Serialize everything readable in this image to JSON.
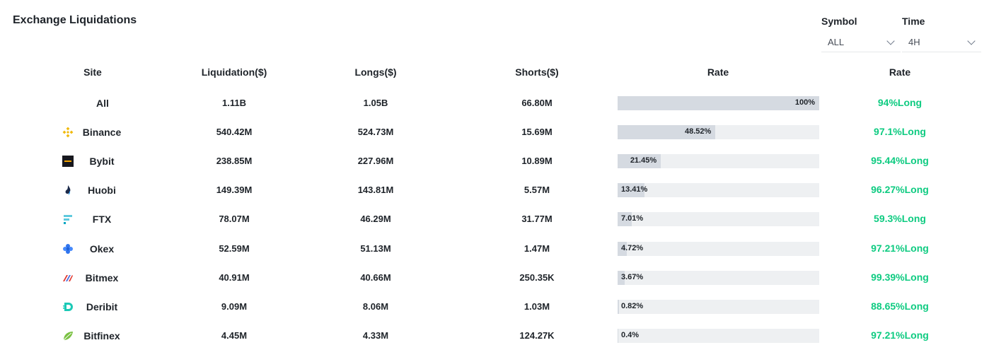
{
  "title": "Exchange Liquidations",
  "filters": {
    "symbol": {
      "label": "Symbol",
      "value": "ALL"
    },
    "time": {
      "label": "Time",
      "value": "4H"
    }
  },
  "columns": [
    "Site",
    "Liquidation($)",
    "Longs($)",
    "Shorts($)",
    "Rate",
    "Rate"
  ],
  "rows": [
    {
      "site": "All",
      "icon": "",
      "liquidation": "1.11B",
      "longs": "1.05B",
      "shorts": "66.80M",
      "rate_bar": "100%",
      "rate_pct": 100,
      "rate": "94%Long"
    },
    {
      "site": "Binance",
      "icon": "binance-icon",
      "liquidation": "540.42M",
      "longs": "524.73M",
      "shorts": "15.69M",
      "rate_bar": "48.52%",
      "rate_pct": 48.52,
      "rate": "97.1%Long"
    },
    {
      "site": "Bybit",
      "icon": "bybit-icon",
      "liquidation": "238.85M",
      "longs": "227.96M",
      "shorts": "10.89M",
      "rate_bar": "21.45%",
      "rate_pct": 21.45,
      "rate": "95.44%Long"
    },
    {
      "site": "Huobi",
      "icon": "huobi-icon",
      "liquidation": "149.39M",
      "longs": "143.81M",
      "shorts": "5.57M",
      "rate_bar": "13.41%",
      "rate_pct": 13.41,
      "rate": "96.27%Long"
    },
    {
      "site": "FTX",
      "icon": "ftx-icon",
      "liquidation": "78.07M",
      "longs": "46.29M",
      "shorts": "31.77M",
      "rate_bar": "7.01%",
      "rate_pct": 7.01,
      "rate": "59.3%Long"
    },
    {
      "site": "Okex",
      "icon": "okex-icon",
      "liquidation": "52.59M",
      "longs": "51.13M",
      "shorts": "1.47M",
      "rate_bar": "4.72%",
      "rate_pct": 4.72,
      "rate": "97.21%Long"
    },
    {
      "site": "Bitmex",
      "icon": "bitmex-icon",
      "liquidation": "40.91M",
      "longs": "40.66M",
      "shorts": "250.35K",
      "rate_bar": "3.67%",
      "rate_pct": 3.67,
      "rate": "99.39%Long"
    },
    {
      "site": "Deribit",
      "icon": "deribit-icon",
      "liquidation": "9.09M",
      "longs": "8.06M",
      "shorts": "1.03M",
      "rate_bar": "0.82%",
      "rate_pct": 0.82,
      "rate": "88.65%Long"
    },
    {
      "site": "Bitfinex",
      "icon": "bitfinex-icon",
      "liquidation": "4.45M",
      "longs": "4.33M",
      "shorts": "124.27K",
      "rate_bar": "0.4%",
      "rate_pct": 0.4,
      "rate": "97.21%Long"
    }
  ],
  "colors": {
    "long_green": "#0ecb81",
    "bar_fill": "#d5dae1",
    "bar_track": "#eef0f2"
  }
}
